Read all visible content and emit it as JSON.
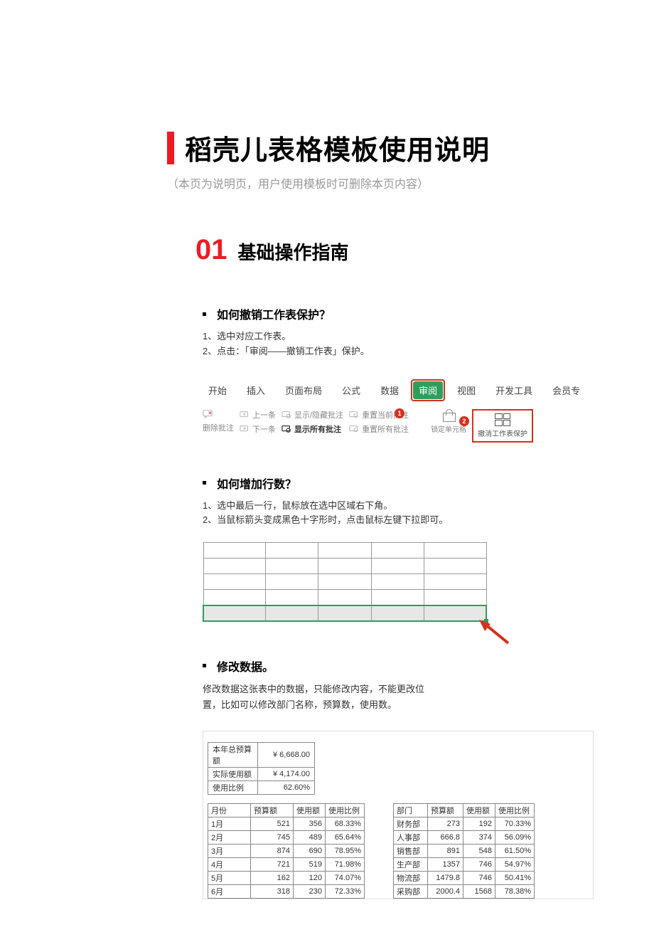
{
  "colors": {
    "accent_red": "#ed1c24",
    "toolbar_green": "#2e9e5b",
    "badge_red": "#d6301e",
    "grey_text": "#999999",
    "border_grey": "#888888"
  },
  "header": {
    "title": "稻壳儿表格模板使用说明",
    "subtitle": "（本页为说明页，用户使用模板时可删除本页内容）"
  },
  "section1": {
    "number": "01",
    "title": "基础操作指南"
  },
  "q1": {
    "title": "如何撤销工作表保护？",
    "step1": "1、选中对应工作表。",
    "step2": "2、点击：「审阅——撤销工作表」保护。"
  },
  "toolbar": {
    "tabs": [
      "开始",
      "插入",
      "页面布局",
      "公式",
      "数据",
      "审阅",
      "视图",
      "开发工具",
      "会员专"
    ],
    "active_index": 5,
    "row_a": {
      "delete_note": "删除批注",
      "prev": "上一条",
      "next": "下一条",
      "show_hide": "显示/隐藏批注",
      "show_all": "显示所有批注",
      "reset_current": "重置当前批注",
      "reset_all": "重置所有批注",
      "lock_cell": "锁定单元格",
      "unprotect": "撤消工作表保护"
    },
    "badge1": "1",
    "badge2": "2"
  },
  "q2": {
    "title": "如何增加行数？",
    "step1": "1、选中最后一行，鼠标放在选中区域右下角。",
    "step2": "2、当鼠标箭头变成黑色十字形时，点击鼠标左键下拉即可。"
  },
  "mini_table": {
    "rows": 5,
    "cols": 5
  },
  "q3": {
    "title": "修改数据。",
    "para": "修改数据这张表中的数据，只能修改内容，不能更改位置，比如可以修改部门名称，预算数，使用数。"
  },
  "summary": {
    "rows": [
      {
        "label": "本年总预算额",
        "value": "¥ 6,668.00"
      },
      {
        "label": "实际使用额",
        "value": "¥ 4,174.00"
      },
      {
        "label": "使用比例",
        "value": "62.60%"
      }
    ]
  },
  "month_table": {
    "headers": [
      "月份",
      "预算额",
      "使用额",
      "使用比例"
    ],
    "rows": [
      [
        "1月",
        "521",
        "356",
        "68.33%"
      ],
      [
        "2月",
        "745",
        "489",
        "65.64%"
      ],
      [
        "3月",
        "874",
        "690",
        "78.95%"
      ],
      [
        "4月",
        "721",
        "519",
        "71.98%"
      ],
      [
        "5月",
        "162",
        "120",
        "74.07%"
      ],
      [
        "6月",
        "318",
        "230",
        "72.33%"
      ]
    ]
  },
  "dept_table": {
    "headers": [
      "部门",
      "预算额",
      "使用额",
      "使用比例"
    ],
    "rows": [
      [
        "财务部",
        "273",
        "192",
        "70.33%"
      ],
      [
        "人事部",
        "666.8",
        "374",
        "56.09%"
      ],
      [
        "销售部",
        "891",
        "548",
        "61.50%"
      ],
      [
        "生产部",
        "1357",
        "746",
        "54.97%"
      ],
      [
        "物流部",
        "1479.8",
        "746",
        "50.41%"
      ],
      [
        "采购部",
        "2000.4",
        "1568",
        "78.38%"
      ]
    ]
  }
}
